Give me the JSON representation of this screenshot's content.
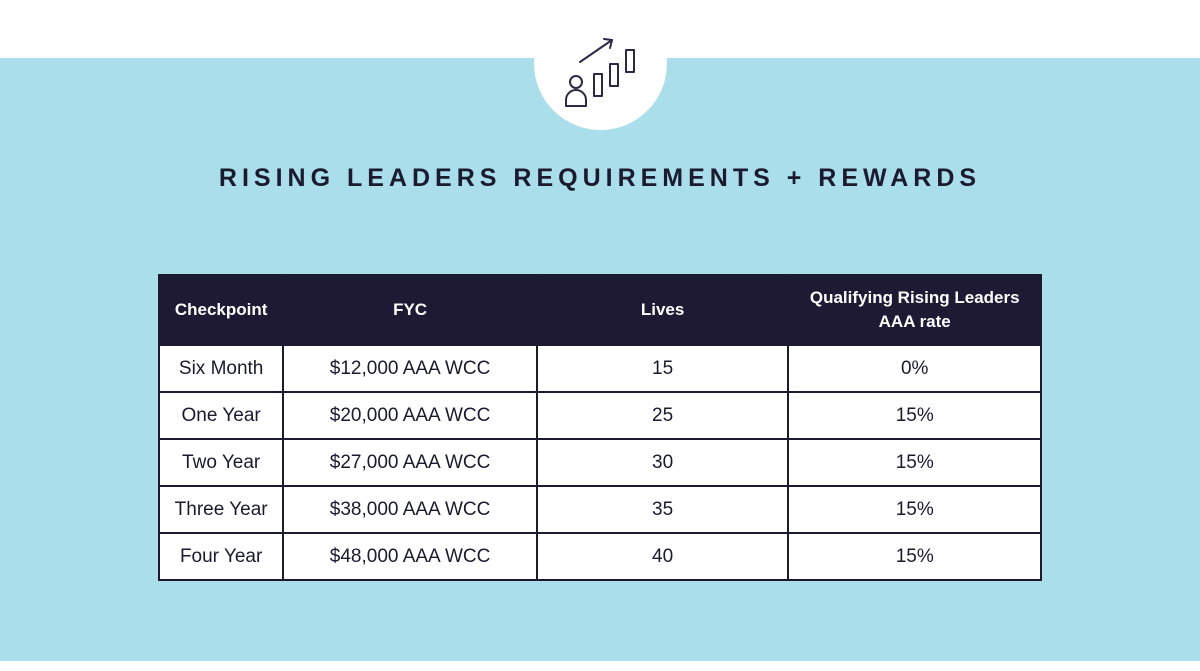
{
  "title": "RISING LEADERS REQUIREMENTS + REWARDS",
  "icon": "growth-chart-person-icon",
  "colors": {
    "band": "#aadeeb",
    "header_bg": "#1e1a33",
    "text": "#1b1a2e"
  },
  "table": {
    "headers": [
      "Checkpoint",
      "FYC",
      "Lives",
      "Qualifying Rising Leaders AAA rate"
    ],
    "rows": [
      [
        "Six Month",
        "$12,000 AAA WCC",
        "15",
        "0%"
      ],
      [
        "One Year",
        "$20,000 AAA WCC",
        "25",
        "15%"
      ],
      [
        "Two Year",
        "$27,000 AAA WCC",
        "30",
        "15%"
      ],
      [
        "Three Year",
        "$38,000 AAA WCC",
        "35",
        "15%"
      ],
      [
        "Four Year",
        "$48,000 AAA WCC",
        "40",
        "15%"
      ]
    ]
  }
}
